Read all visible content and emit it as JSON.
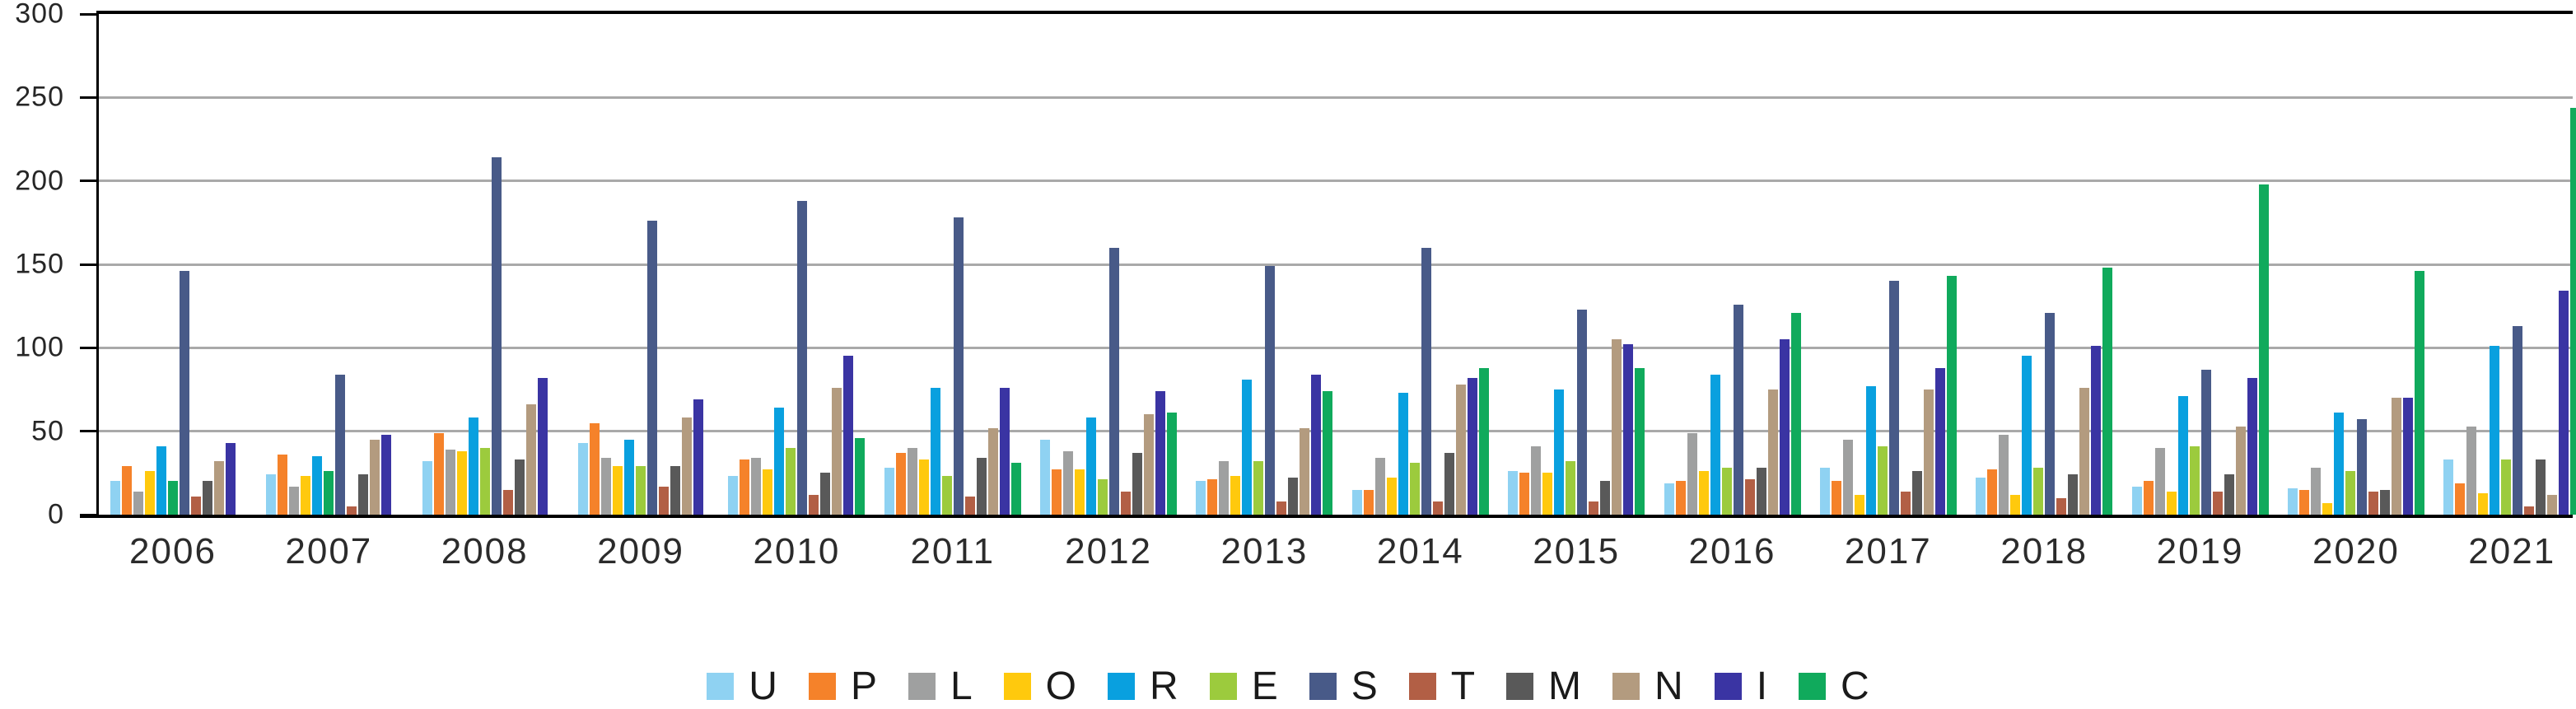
{
  "chart_data": {
    "type": "bar",
    "title": "",
    "xlabel": "",
    "ylabel": "",
    "ylim": [
      0,
      300
    ],
    "yticks": [
      0,
      50,
      100,
      150,
      200,
      250,
      300
    ],
    "grid": "horizontal",
    "legend_position": "bottom-center",
    "series": [
      {
        "key": "U",
        "label": "U",
        "color": "#8FD2F2"
      },
      {
        "key": "P",
        "label": "P",
        "color": "#F5822A"
      },
      {
        "key": "L",
        "label": "L",
        "color": "#9FA0A0"
      },
      {
        "key": "O",
        "label": "O",
        "color": "#FFC90D"
      },
      {
        "key": "R",
        "label": "R",
        "color": "#09A0DF"
      },
      {
        "key": "E",
        "label": "E",
        "color": "#9CCB3D"
      },
      {
        "key": "S",
        "label": "S",
        "color": "#485A88"
      },
      {
        "key": "T",
        "label": "T",
        "color": "#B25F45"
      },
      {
        "key": "M",
        "label": "M",
        "color": "#595959"
      },
      {
        "key": "N",
        "label": "N",
        "color": "#B39B7F"
      },
      {
        "key": "I",
        "label": "I",
        "color": "#3A34A3"
      },
      {
        "key": "C",
        "label": "C",
        "color": "#10AA5C"
      }
    ],
    "years": [
      {
        "label": "2006",
        "bars": [
          [
            "U",
            20
          ],
          [
            "P",
            29
          ],
          [
            "L",
            14
          ],
          [
            "O",
            26
          ],
          [
            "R",
            41
          ],
          [
            "C",
            20
          ],
          [
            "S",
            146
          ],
          [
            "T",
            11
          ],
          [
            "M",
            20
          ],
          [
            "N",
            32
          ],
          [
            "I",
            43
          ]
        ]
      },
      {
        "label": "2007",
        "bars": [
          [
            "U",
            24
          ],
          [
            "P",
            36
          ],
          [
            "L",
            17
          ],
          [
            "O",
            23
          ],
          [
            "R",
            35
          ],
          [
            "C",
            26
          ],
          [
            "S",
            84
          ],
          [
            "T",
            5
          ],
          [
            "M",
            24
          ],
          [
            "N",
            45
          ],
          [
            "I",
            48
          ]
        ]
      },
      {
        "label": "2008",
        "bars": [
          [
            "U",
            32
          ],
          [
            "P",
            49
          ],
          [
            "L",
            39
          ],
          [
            "O",
            38
          ],
          [
            "R",
            58
          ],
          [
            "E",
            40
          ],
          [
            "S",
            214
          ],
          [
            "T",
            15
          ],
          [
            "M",
            33
          ],
          [
            "N",
            66
          ],
          [
            "I",
            82
          ]
        ]
      },
      {
        "label": "2009",
        "bars": [
          [
            "U",
            43
          ],
          [
            "P",
            55
          ],
          [
            "L",
            34
          ],
          [
            "O",
            29
          ],
          [
            "R",
            45
          ],
          [
            "E",
            29
          ],
          [
            "S",
            176
          ],
          [
            "T",
            17
          ],
          [
            "M",
            29
          ],
          [
            "N",
            58
          ],
          [
            "I",
            69
          ]
        ]
      },
      {
        "label": "2010",
        "bars": [
          [
            "U",
            23
          ],
          [
            "P",
            33
          ],
          [
            "L",
            34
          ],
          [
            "O",
            27
          ],
          [
            "R",
            64
          ],
          [
            "E",
            40
          ],
          [
            "S",
            188
          ],
          [
            "T",
            12
          ],
          [
            "M",
            25
          ],
          [
            "N",
            76
          ],
          [
            "I",
            95
          ],
          [
            "C",
            46
          ]
        ]
      },
      {
        "label": "2011",
        "bars": [
          [
            "U",
            28
          ],
          [
            "P",
            37
          ],
          [
            "L",
            40
          ],
          [
            "O",
            33
          ],
          [
            "R",
            76
          ],
          [
            "E",
            23
          ],
          [
            "S",
            178
          ],
          [
            "T",
            11
          ],
          [
            "M",
            34
          ],
          [
            "N",
            52
          ],
          [
            "I",
            76
          ],
          [
            "C",
            31
          ]
        ]
      },
      {
        "label": "2012",
        "bars": [
          [
            "U",
            45
          ],
          [
            "P",
            27
          ],
          [
            "L",
            38
          ],
          [
            "O",
            27
          ],
          [
            "R",
            58
          ],
          [
            "E",
            21
          ],
          [
            "S",
            160
          ],
          [
            "T",
            14
          ],
          [
            "M",
            37
          ],
          [
            "N",
            60
          ],
          [
            "I",
            74
          ],
          [
            "C",
            61
          ]
        ]
      },
      {
        "label": "2013",
        "bars": [
          [
            "U",
            20
          ],
          [
            "P",
            21
          ],
          [
            "L",
            32
          ],
          [
            "O",
            23
          ],
          [
            "R",
            81
          ],
          [
            "E",
            32
          ],
          [
            "S",
            149
          ],
          [
            "T",
            8
          ],
          [
            "M",
            22
          ],
          [
            "N",
            52
          ],
          [
            "I",
            84
          ],
          [
            "C",
            74
          ]
        ]
      },
      {
        "label": "2014",
        "bars": [
          [
            "U",
            15
          ],
          [
            "P",
            15
          ],
          [
            "L",
            34
          ],
          [
            "O",
            22
          ],
          [
            "R",
            73
          ],
          [
            "E",
            31
          ],
          [
            "S",
            160
          ],
          [
            "T",
            8
          ],
          [
            "M",
            37
          ],
          [
            "N",
            78
          ],
          [
            "I",
            82
          ],
          [
            "C",
            88
          ]
        ]
      },
      {
        "label": "2015",
        "bars": [
          [
            "U",
            26
          ],
          [
            "P",
            25
          ],
          [
            "L",
            41
          ],
          [
            "O",
            25
          ],
          [
            "R",
            75
          ],
          [
            "E",
            32
          ],
          [
            "S",
            123
          ],
          [
            "T",
            8
          ],
          [
            "M",
            20
          ],
          [
            "N",
            105
          ],
          [
            "I",
            102
          ],
          [
            "C",
            88
          ]
        ]
      },
      {
        "label": "2016",
        "bars": [
          [
            "U",
            19
          ],
          [
            "P",
            20
          ],
          [
            "L",
            49
          ],
          [
            "O",
            26
          ],
          [
            "R",
            84
          ],
          [
            "E",
            28
          ],
          [
            "S",
            126
          ],
          [
            "T",
            21
          ],
          [
            "M",
            28
          ],
          [
            "N",
            75
          ],
          [
            "I",
            105
          ],
          [
            "C",
            121
          ]
        ]
      },
      {
        "label": "2017",
        "bars": [
          [
            "U",
            28
          ],
          [
            "P",
            20
          ],
          [
            "L",
            45
          ],
          [
            "O",
            12
          ],
          [
            "R",
            77
          ],
          [
            "E",
            41
          ],
          [
            "S",
            140
          ],
          [
            "T",
            14
          ],
          [
            "M",
            26
          ],
          [
            "N",
            75
          ],
          [
            "I",
            88
          ],
          [
            "C",
            143
          ]
        ]
      },
      {
        "label": "2018",
        "bars": [
          [
            "U",
            22
          ],
          [
            "P",
            27
          ],
          [
            "L",
            48
          ],
          [
            "O",
            12
          ],
          [
            "R",
            95
          ],
          [
            "E",
            28
          ],
          [
            "S",
            121
          ],
          [
            "T",
            10
          ],
          [
            "M",
            24
          ],
          [
            "N",
            76
          ],
          [
            "I",
            101
          ],
          [
            "C",
            148
          ]
        ]
      },
      {
        "label": "2019",
        "bars": [
          [
            "U",
            17
          ],
          [
            "P",
            20
          ],
          [
            "L",
            40
          ],
          [
            "O",
            14
          ],
          [
            "R",
            71
          ],
          [
            "E",
            41
          ],
          [
            "S",
            87
          ],
          [
            "T",
            14
          ],
          [
            "M",
            24
          ],
          [
            "N",
            53
          ],
          [
            "I",
            82
          ],
          [
            "C",
            198
          ]
        ]
      },
      {
        "label": "2020",
        "bars": [
          [
            "U",
            16
          ],
          [
            "P",
            15
          ],
          [
            "L",
            28
          ],
          [
            "O",
            7
          ],
          [
            "R",
            61
          ],
          [
            "E",
            26
          ],
          [
            "S",
            57
          ],
          [
            "T",
            14
          ],
          [
            "M",
            15
          ],
          [
            "N",
            70
          ],
          [
            "I",
            70
          ],
          [
            "C",
            146
          ]
        ]
      },
      {
        "label": "2021",
        "bars": [
          [
            "U",
            33
          ],
          [
            "P",
            19
          ],
          [
            "L",
            53
          ],
          [
            "O",
            13
          ],
          [
            "R",
            101
          ],
          [
            "E",
            33
          ],
          [
            "S",
            113
          ],
          [
            "T",
            5
          ],
          [
            "M",
            33
          ],
          [
            "N",
            12
          ],
          [
            "I",
            134
          ],
          [
            "C",
            244
          ]
        ]
      }
    ]
  }
}
